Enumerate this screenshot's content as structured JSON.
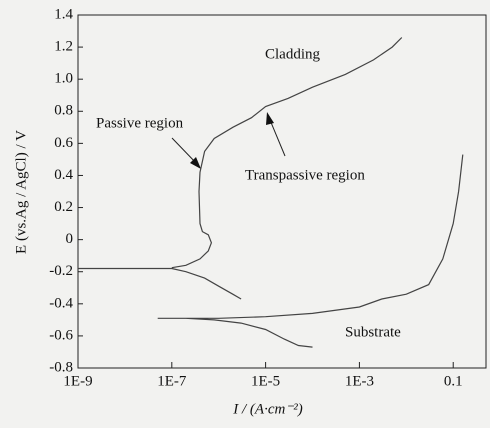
{
  "chart_data": {
    "type": "line",
    "x_label": "I / (A·cm⁻²)",
    "y_label": "E (vs.Ag / AgCl) / V",
    "x_log": true,
    "xlim": [
      1e-09,
      0.5
    ],
    "ylim": [
      -0.8,
      1.4
    ],
    "xticks": [
      {
        "value": 1e-09,
        "label": "1E-9"
      },
      {
        "value": 1e-07,
        "label": "1E-7"
      },
      {
        "value": 1e-05,
        "label": "1E-5"
      },
      {
        "value": 0.001,
        "label": "1E-3"
      },
      0.1
    ],
    "yticks": [
      -0.8,
      -0.6,
      -0.4,
      -0.2,
      0,
      0.2,
      0.4,
      0.6,
      0.8,
      {
        "value": 1,
        "label": "1.0"
      },
      1.2,
      1.4
    ],
    "series": [
      {
        "name": "Cladding",
        "color": "#444444",
        "x": [
          3e-06,
          2e-06,
          1e-06,
          5e-07,
          2e-07,
          1e-07,
          1e-08,
          1e-09,
          null,
          1e-07,
          2e-07,
          4e-07,
          6e-07,
          7e-07,
          6e-07,
          4.5e-07,
          4e-07,
          3.8e-07,
          4e-07,
          5e-07,
          8e-07,
          2e-06,
          5e-06,
          1e-05,
          3e-05,
          0.0001,
          0.0005,
          0.002,
          0.005,
          0.008
        ],
        "values": [
          -0.37,
          -0.34,
          -0.29,
          -0.24,
          -0.2,
          -0.18,
          -0.18,
          -0.18,
          null,
          -0.175,
          -0.16,
          -0.12,
          -0.07,
          -0.02,
          0.03,
          0.05,
          0.1,
          0.3,
          0.42,
          0.55,
          0.63,
          0.7,
          0.76,
          0.83,
          0.88,
          0.95,
          1.03,
          1.12,
          1.2,
          1.26
        ]
      },
      {
        "name": "Substrate",
        "color": "#444444",
        "x": [
          0.0001,
          5e-05,
          2.5e-05,
          1e-05,
          3e-06,
          8e-07,
          2e-07,
          5e-08,
          null,
          2e-07,
          1e-06,
          1e-05,
          0.0001,
          0.001,
          0.003,
          0.01,
          0.03,
          0.06,
          0.1,
          0.13,
          0.16
        ],
        "values": [
          -0.67,
          -0.66,
          -0.62,
          -0.56,
          -0.52,
          -0.5,
          -0.49,
          -0.49,
          null,
          -0.49,
          -0.49,
          -0.48,
          -0.46,
          -0.42,
          -0.37,
          -0.34,
          -0.28,
          -0.12,
          0.1,
          0.3,
          0.53
        ]
      }
    ],
    "annotations": [
      "Passive region",
      "Transpassive region"
    ]
  }
}
